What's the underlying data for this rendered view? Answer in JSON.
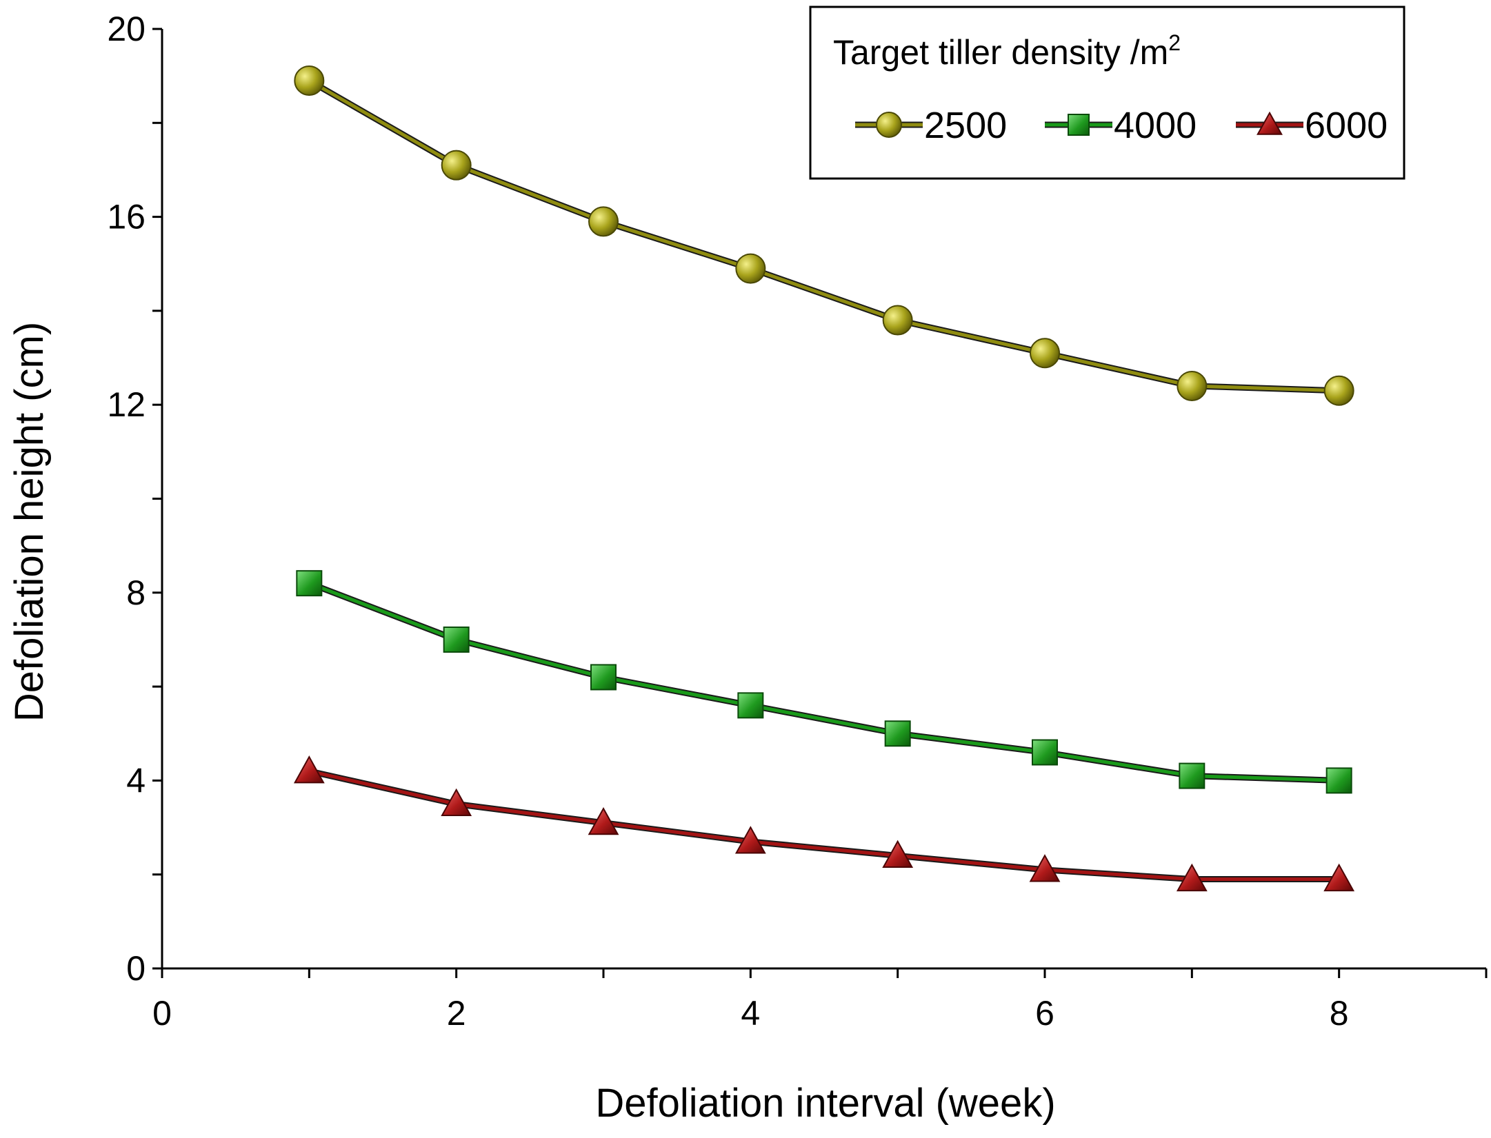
{
  "chart_data": {
    "type": "line",
    "title": "",
    "xlabel": "Defoliation interval (week)",
    "ylabel": "Defoliation height (cm)",
    "xlim": [
      0,
      9
    ],
    "ylim": [
      0,
      20
    ],
    "x_ticks": [
      0,
      2,
      4,
      6,
      8
    ],
    "y_ticks": [
      0,
      4,
      8,
      12,
      16,
      20
    ],
    "x": [
      1,
      2,
      3,
      4,
      5,
      6,
      7,
      8
    ],
    "grid": false,
    "legend": {
      "title": "Target tiller density /m",
      "title_superscript": "2",
      "placement": "top-right"
    },
    "series": [
      {
        "name": "2500",
        "color": "#8f8c10",
        "marker": "circle",
        "values": [
          18.9,
          17.1,
          15.9,
          14.9,
          13.8,
          13.1,
          12.4,
          12.3
        ]
      },
      {
        "name": "4000",
        "color": "#1a9a1a",
        "marker": "square",
        "values": [
          8.2,
          7.0,
          6.2,
          5.6,
          5.0,
          4.6,
          4.1,
          4.0
        ]
      },
      {
        "name": "6000",
        "color": "#a31414",
        "marker": "triangle",
        "values": [
          4.2,
          3.5,
          3.1,
          2.7,
          2.4,
          2.1,
          1.9,
          1.9
        ]
      }
    ]
  }
}
